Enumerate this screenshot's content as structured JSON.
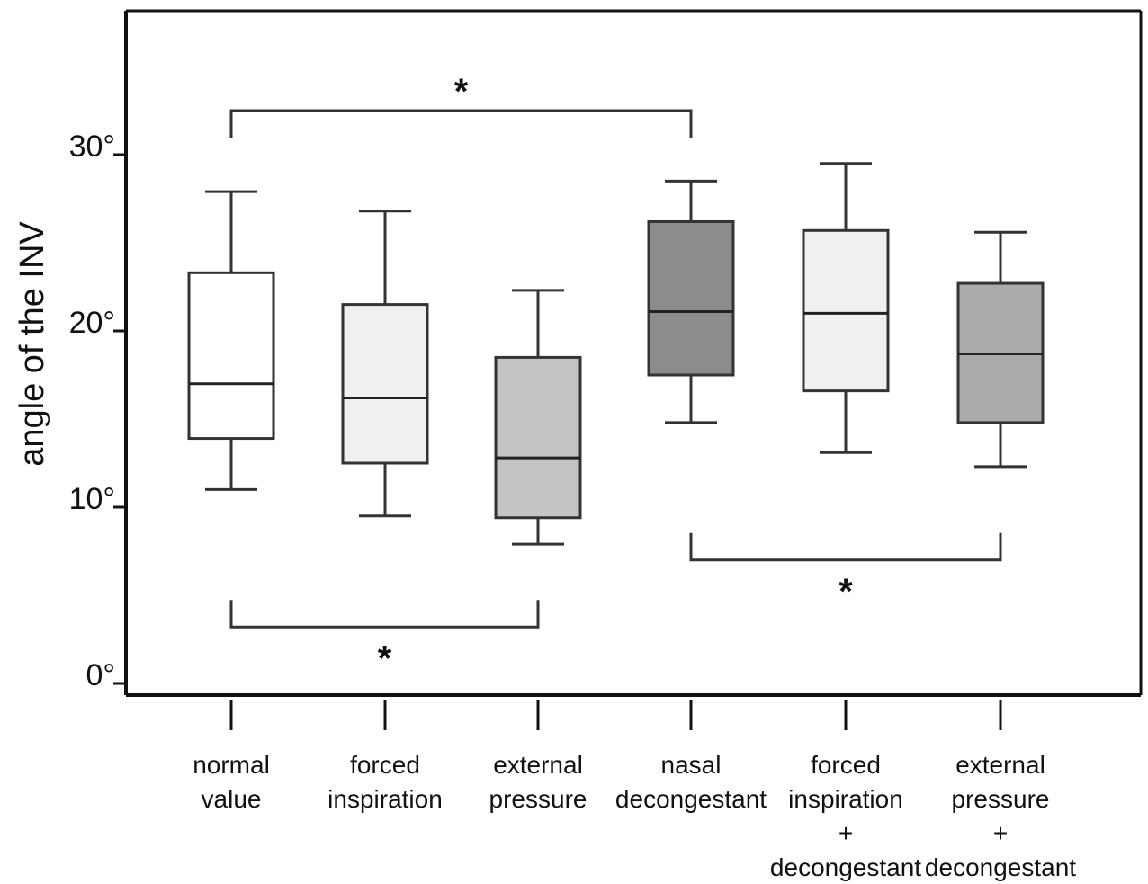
{
  "chart_data": {
    "type": "box",
    "ylabel": "angle of the INV",
    "ylim": [
      0,
      38
    ],
    "yticks": [
      {
        "value": 0,
        "label": "0°"
      },
      {
        "value": 10,
        "label": "10°"
      },
      {
        "value": 20,
        "label": "20°"
      },
      {
        "value": 30,
        "label": "30°"
      }
    ],
    "categories": [
      {
        "lines": [
          "normal",
          "value"
        ]
      },
      {
        "lines": [
          "forced",
          "inspiration"
        ]
      },
      {
        "lines": [
          "external",
          "pressure"
        ]
      },
      {
        "lines": [
          "nasal",
          "decongestant"
        ]
      },
      {
        "lines": [
          "forced",
          "inspiration",
          "+",
          "decongestant"
        ]
      },
      {
        "lines": [
          "external",
          "pressure",
          "+",
          "decongestant"
        ]
      }
    ],
    "boxes": [
      {
        "whisker_low": 11.0,
        "q1": 13.9,
        "median": 17.0,
        "q3": 23.3,
        "whisker_high": 27.9,
        "color": "#ffffff"
      },
      {
        "whisker_low": 9.5,
        "q1": 12.5,
        "median": 16.2,
        "q3": 21.5,
        "whisker_high": 26.8,
        "color": "#f0f0f0"
      },
      {
        "whisker_low": 7.9,
        "q1": 9.4,
        "median": 12.8,
        "q3": 18.5,
        "whisker_high": 22.3,
        "color": "#c4c4c4"
      },
      {
        "whisker_low": 14.8,
        "q1": 17.5,
        "median": 21.1,
        "q3": 26.2,
        "whisker_high": 28.5,
        "color": "#8c8c8c"
      },
      {
        "whisker_low": 13.1,
        "q1": 16.6,
        "median": 21.0,
        "q3": 25.7,
        "whisker_high": 29.5,
        "color": "#f0f0f0"
      },
      {
        "whisker_low": 12.3,
        "q1": 14.8,
        "median": 18.7,
        "q3": 22.7,
        "whisker_high": 25.6,
        "color": "#aaaaaa"
      }
    ],
    "significance": [
      {
        "from": 0,
        "to": 3,
        "y": 32.5,
        "side": "above",
        "label": "*"
      },
      {
        "from": 0,
        "to": 2,
        "y": 3.2,
        "side": "below",
        "label": "*"
      },
      {
        "from": 3,
        "to": 5,
        "y": 7.0,
        "side": "below",
        "label": "*"
      }
    ],
    "grid": false,
    "legend": "none"
  }
}
